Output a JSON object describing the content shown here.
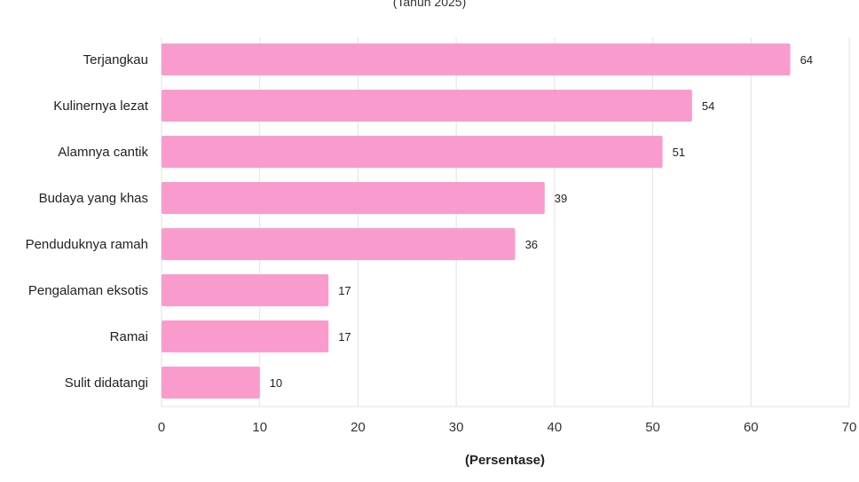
{
  "chart_data": {
    "type": "bar",
    "orientation": "horizontal",
    "subtitle": "(Tahun 2025)",
    "xlabel": "(Persentase)",
    "ylabel": "",
    "categories": [
      "Terjangkau",
      "Kulinernya lezat",
      "Alamnya cantik",
      "Budaya yang khas",
      "Penduduknya ramah",
      "Pengalaman eksotis",
      "Ramai",
      "Sulit didatangi"
    ],
    "values": [
      64,
      54,
      51,
      39,
      36,
      17,
      17,
      10
    ],
    "xlim": [
      0,
      70
    ],
    "xticks": [
      0,
      10,
      20,
      30,
      40,
      50,
      60,
      70
    ],
    "grid": true,
    "colors": {
      "bar": "#f99ccd",
      "grid": "#e2e2e2"
    }
  }
}
